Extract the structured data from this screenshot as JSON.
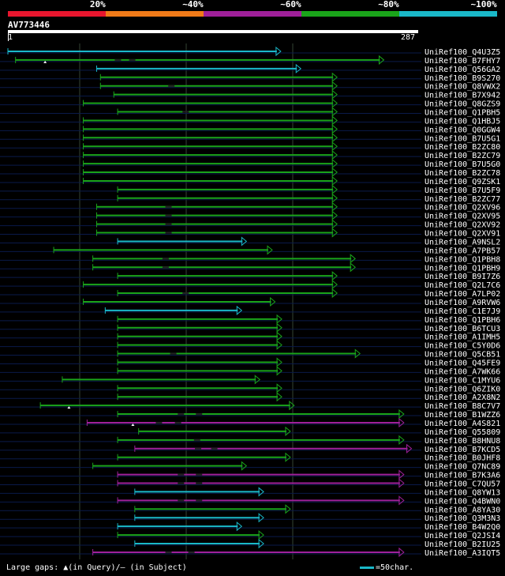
{
  "scale": {
    "labels": [
      "20%",
      "~40%",
      "~60%",
      "~80%",
      "~100%"
    ],
    "colors": [
      "#e8162e",
      "#f07a18",
      "#a0209a",
      "#1aa41a",
      "#1ab8c8"
    ]
  },
  "query": {
    "name": "AV773446",
    "start": "1",
    "end": "287",
    "length": 287
  },
  "footer": {
    "gaps_label": "Large gaps: ▲(in Query)/– (in Subject)",
    "legend_label": "=50char.",
    "legend_color": "#1ab8c8"
  },
  "hits": [
    {
      "label": "UniRef100_Q4U3Z5",
      "color": "#1ab8c8",
      "start": 1,
      "end": 287
    },
    {
      "label": "UniRef100_B7FHY7",
      "color": "#1aa41a",
      "start": 9,
      "end": 395,
      "gaps": [
        113,
        128
      ],
      "qgaps": [
        40
      ]
    },
    {
      "label": "UniRef100_Q56GA2",
      "color": "#1ab8c8",
      "start": 94,
      "end": 308
    },
    {
      "label": "UniRef100_B9S270",
      "color": "#1aa41a",
      "start": 98,
      "end": 346
    },
    {
      "label": "UniRef100_Q8VWX2",
      "color": "#1aa41a",
      "start": 98,
      "end": 346,
      "gaps": [
        169
      ]
    },
    {
      "label": "UniRef100_B7X942",
      "color": "#1aa41a",
      "start": 112,
      "end": 346
    },
    {
      "label": "UniRef100_Q8GZS9",
      "color": "#1aa41a",
      "start": 80,
      "end": 346
    },
    {
      "label": "UniRef100_Q1PBH5",
      "color": "#1aa41a",
      "start": 116,
      "end": 346,
      "gaps": [
        184
      ]
    },
    {
      "label": "UniRef100_Q1HBJ5",
      "color": "#1aa41a",
      "start": 80,
      "end": 346
    },
    {
      "label": "UniRef100_Q0GGW4",
      "color": "#1aa41a",
      "start": 80,
      "end": 346
    },
    {
      "label": "UniRef100_B7U5G1",
      "color": "#1aa41a",
      "start": 80,
      "end": 346
    },
    {
      "label": "UniRef100_B2ZC80",
      "color": "#1aa41a",
      "start": 80,
      "end": 346
    },
    {
      "label": "UniRef100_B2ZC79",
      "color": "#1aa41a",
      "start": 80,
      "end": 346
    },
    {
      "label": "UniRef100_B7U5G0",
      "color": "#1aa41a",
      "start": 80,
      "end": 346
    },
    {
      "label": "UniRef100_B2ZC78",
      "color": "#1aa41a",
      "start": 80,
      "end": 346
    },
    {
      "label": "UniRef100_Q9ZSK1",
      "color": "#1aa41a",
      "start": 80,
      "end": 346
    },
    {
      "label": "UniRef100_B7U5F9",
      "color": "#1aa41a",
      "start": 116,
      "end": 346
    },
    {
      "label": "UniRef100_B2ZC77",
      "color": "#1aa41a",
      "start": 116,
      "end": 346
    },
    {
      "label": "UniRef100_Q2XV96",
      "color": "#1aa41a",
      "start": 94,
      "end": 346,
      "gaps": [
        166
      ]
    },
    {
      "label": "UniRef100_Q2XV95",
      "color": "#1aa41a",
      "start": 94,
      "end": 346,
      "gaps": [
        166
      ]
    },
    {
      "label": "UniRef100_Q2XV92",
      "color": "#1aa41a",
      "start": 94,
      "end": 346,
      "gaps": [
        166
      ]
    },
    {
      "label": "UniRef100_Q2XV91",
      "color": "#1aa41a",
      "start": 94,
      "end": 346,
      "gaps": [
        166
      ]
    },
    {
      "label": "UniRef100_A9NSL2",
      "color": "#1ab8c8",
      "start": 116,
      "end": 251
    },
    {
      "label": "UniRef100_A7PB57",
      "color": "#1aa41a",
      "start": 49,
      "end": 278
    },
    {
      "label": "UniRef100_Q1PBH8",
      "color": "#1aa41a",
      "start": 90,
      "end": 365,
      "gaps": [
        163
      ]
    },
    {
      "label": "UniRef100_Q1PBH9",
      "color": "#1aa41a",
      "start": 90,
      "end": 365,
      "gaps": [
        163
      ]
    },
    {
      "label": "UniRef100_B9I7Z6",
      "color": "#1aa41a",
      "start": 116,
      "end": 346
    },
    {
      "label": "UniRef100_Q2L7C6",
      "color": "#1aa41a",
      "start": 80,
      "end": 346
    },
    {
      "label": "UniRef100_A7LP02",
      "color": "#1aa41a",
      "start": 116,
      "end": 346,
      "gaps": [
        184
      ]
    },
    {
      "label": "UniRef100_A9RVW6",
      "color": "#1aa41a",
      "start": 80,
      "end": 281
    },
    {
      "label": "UniRef100_C1E7J9",
      "color": "#1ab8c8",
      "start": 103,
      "end": 246
    },
    {
      "label": "UniRef100_Q1PBH6",
      "color": "#1aa41a",
      "start": 116,
      "end": 288
    },
    {
      "label": "UniRef100_B6TCU3",
      "color": "#1aa41a",
      "start": 116,
      "end": 288
    },
    {
      "label": "UniRef100_A1IMH5",
      "color": "#1aa41a",
      "start": 116,
      "end": 288
    },
    {
      "label": "UniRef100_C5Y0D6",
      "color": "#1aa41a",
      "start": 116,
      "end": 288
    },
    {
      "label": "UniRef100_Q5CB51",
      "color": "#1aa41a",
      "start": 116,
      "end": 370,
      "gaps": [
        171
      ]
    },
    {
      "label": "UniRef100_Q45FE9",
      "color": "#1aa41a",
      "start": 116,
      "end": 288
    },
    {
      "label": "UniRef100_A7WK66",
      "color": "#1aa41a",
      "start": 116,
      "end": 288
    },
    {
      "label": "UniRef100_C1MYU6",
      "color": "#1aa41a",
      "start": 58,
      "end": 265
    },
    {
      "label": "UniRef100_Q6ZIK0",
      "color": "#1aa41a",
      "start": 116,
      "end": 288
    },
    {
      "label": "UniRef100_A2X8N2",
      "color": "#1aa41a",
      "start": 116,
      "end": 288
    },
    {
      "label": "UniRef100_B8C7V7",
      "color": "#1aa41a",
      "start": 35,
      "end": 301,
      "qgaps": [
        65
      ]
    },
    {
      "label": "UniRef100_B1WZZ6",
      "color": "#1aa41a",
      "start": 116,
      "end": 416,
      "gaps": [
        179,
        198
      ]
    },
    {
      "label": "UniRef100_A4S821",
      "color": "#a0209a",
      "start": 84,
      "end": 416,
      "gaps": [
        156,
        176
      ],
      "qgaps": [
        132
      ]
    },
    {
      "label": "UniRef100_Q55809",
      "color": "#1aa41a",
      "start": 138,
      "end": 297
    },
    {
      "label": "UniRef100_B8HNU8",
      "color": "#1aa41a",
      "start": 116,
      "end": 416,
      "gaps": [
        196
      ]
    },
    {
      "label": "UniRef100_B7KCD5",
      "color": "#a0209a",
      "start": 134,
      "end": 424,
      "gaps": [
        197,
        214
      ]
    },
    {
      "label": "UniRef100_B0JHF8",
      "color": "#1aa41a",
      "start": 116,
      "end": 297
    },
    {
      "label": "UniRef100_Q7NC89",
      "color": "#1aa41a",
      "start": 90,
      "end": 251
    },
    {
      "label": "UniRef100_B7K3A6",
      "color": "#a0209a",
      "start": 116,
      "end": 416,
      "gaps": [
        179,
        198
      ]
    },
    {
      "label": "UniRef100_C7QU57",
      "color": "#a0209a",
      "start": 116,
      "end": 416,
      "gaps": [
        179,
        198
      ]
    },
    {
      "label": "UniRef100_Q8YW13",
      "color": "#1ab8c8",
      "start": 134,
      "end": 269
    },
    {
      "label": "UniRef100_Q4BWN0",
      "color": "#a0209a",
      "start": 116,
      "end": 416,
      "gaps": [
        179,
        198
      ]
    },
    {
      "label": "UniRef100_A8YA30",
      "color": "#1aa41a",
      "start": 134,
      "end": 297
    },
    {
      "label": "UniRef100_Q3M3N3",
      "color": "#1ab8c8",
      "start": 134,
      "end": 269
    },
    {
      "label": "UniRef100_B4W2Q0",
      "color": "#1ab8c8",
      "start": 116,
      "end": 246
    },
    {
      "label": "UniRef100_Q2JSI4",
      "color": "#1aa41a",
      "start": 116,
      "end": 269
    },
    {
      "label": "UniRef100_B2IU25",
      "color": "#1ab8c8",
      "start": 134,
      "end": 269
    },
    {
      "label": "UniRef100_A3IQT5",
      "color": "#a0209a",
      "start": 90,
      "end": 416,
      "gaps": [
        166,
        190
      ]
    }
  ]
}
